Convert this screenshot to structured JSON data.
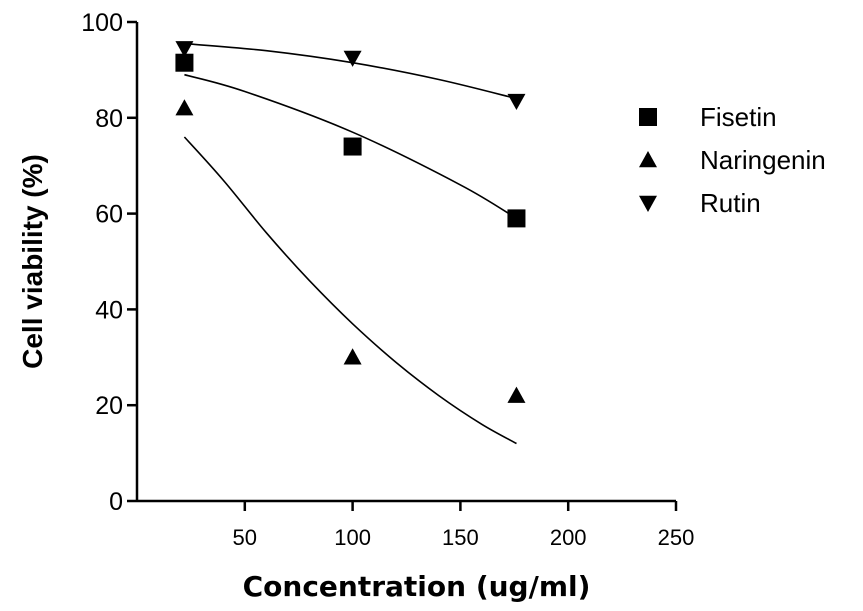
{
  "chart_data": {
    "type": "scatter",
    "title": "",
    "xlabel": "Concentration (ug/ml)",
    "ylabel": "Cell viability (%)",
    "xlim": [
      0,
      250
    ],
    "ylim": [
      0,
      100
    ],
    "x_ticks": [
      50,
      100,
      150,
      200,
      250
    ],
    "y_ticks": [
      0,
      20,
      40,
      60,
      80,
      100
    ],
    "grid": false,
    "legend_position": "right",
    "series": [
      {
        "name": "Fisetin",
        "marker": "square",
        "x": [
          22,
          100,
          176
        ],
        "y": [
          91.5,
          74,
          59
        ],
        "fit": {
          "x": [
            22,
            50,
            100,
            150,
            176
          ],
          "y": [
            89,
            85.5,
            77,
            66,
            59
          ]
        }
      },
      {
        "name": "Naringenin",
        "marker": "triangle-up",
        "x": [
          22,
          100,
          176
        ],
        "y": [
          82,
          30,
          22
        ],
        "fit": {
          "x": [
            22,
            40,
            60,
            80,
            100,
            120,
            140,
            160,
            176
          ],
          "y": [
            76,
            67,
            56,
            46,
            37,
            29,
            22,
            16,
            12
          ]
        }
      },
      {
        "name": "Rutin",
        "marker": "triangle-down",
        "x": [
          22,
          100,
          176
        ],
        "y": [
          94.5,
          92.5,
          83.5
        ],
        "fit": {
          "x": [
            22,
            60,
            100,
            140,
            176
          ],
          "y": [
            95.5,
            94,
            91.5,
            88,
            84
          ]
        }
      }
    ]
  }
}
